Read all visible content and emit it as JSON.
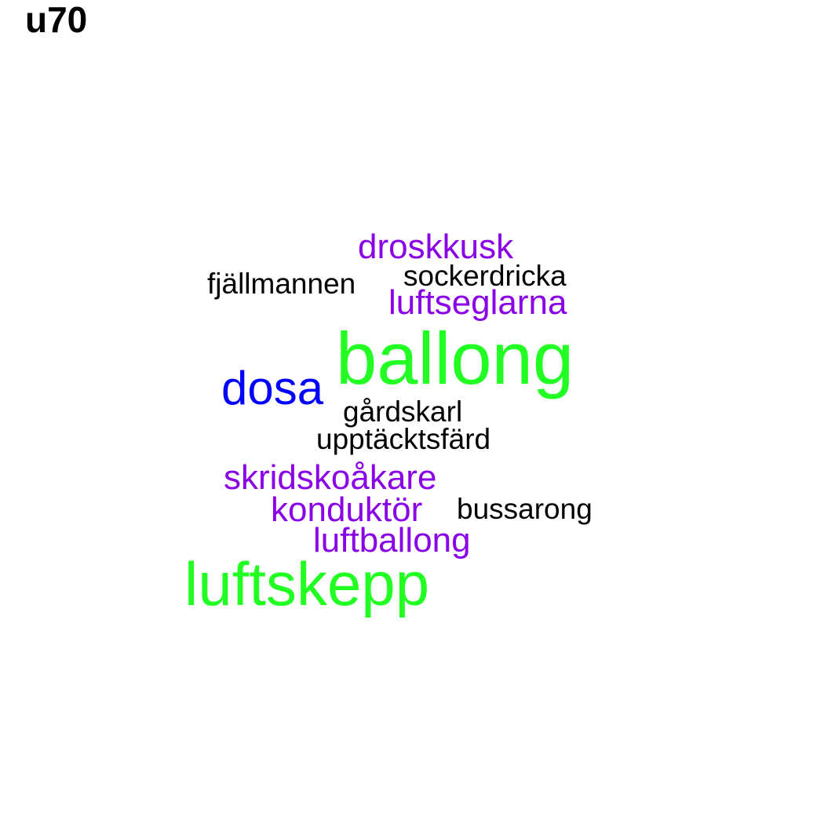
{
  "title": "u70",
  "colors": {
    "green": "#22ff22",
    "purple": "#8a00e6",
    "blue": "#0000ff",
    "black": "#000000"
  },
  "words": [
    {
      "text": "droskkusk",
      "color": "#8a00e6"
    },
    {
      "text": "sockerdricka",
      "color": "#000000"
    },
    {
      "text": "fjällmannen",
      "color": "#000000"
    },
    {
      "text": "luftseglarna",
      "color": "#8a00e6"
    },
    {
      "text": "ballong",
      "color": "#22ff22"
    },
    {
      "text": "dosa",
      "color": "#0000ff"
    },
    {
      "text": "gårdskarl",
      "color": "#000000"
    },
    {
      "text": "upptäcktsfärd",
      "color": "#000000"
    },
    {
      "text": "skridskoåkare",
      "color": "#8a00e6"
    },
    {
      "text": "konduktör",
      "color": "#8a00e6"
    },
    {
      "text": "bussarong",
      "color": "#000000"
    },
    {
      "text": "luftballong",
      "color": "#8a00e6"
    },
    {
      "text": "luftskepp",
      "color": "#22ff22"
    }
  ]
}
